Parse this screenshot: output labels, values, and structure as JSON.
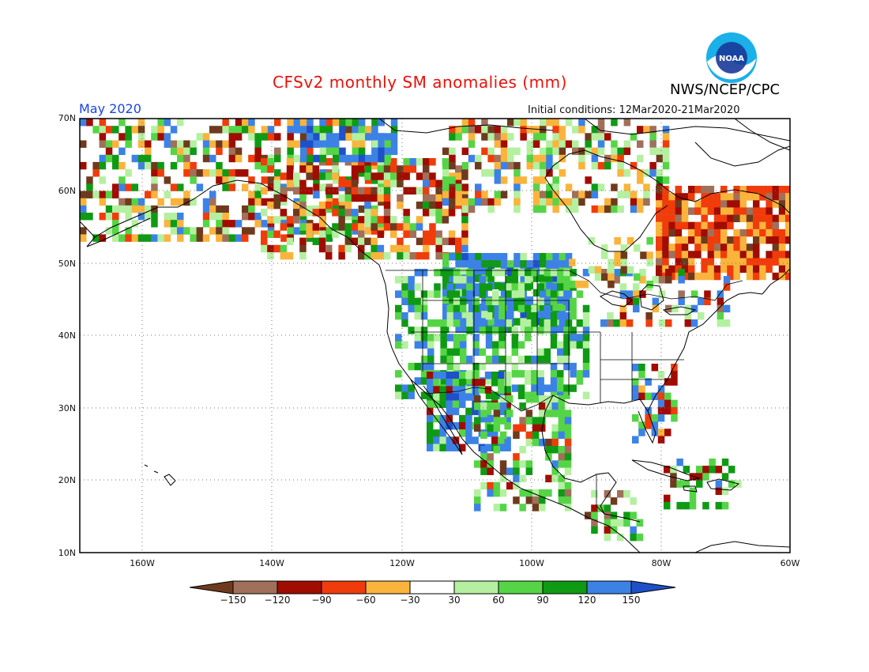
{
  "header": {
    "title": "CFSv2 monthly SM anomalies (mm)",
    "month": "May 2020",
    "init_conditions": "Initial conditions: 12Mar2020-21Mar2020",
    "agency": "NWS/NCEP/CPC",
    "logo_text": "NOAA"
  },
  "axes": {
    "lat_ticks": [
      "70N",
      "60N",
      "50N",
      "40N",
      "30N",
      "20N",
      "10N"
    ],
    "lon_ticks": [
      "160W",
      "140W",
      "120W",
      "100W",
      "80W",
      "60W"
    ]
  },
  "colorbar": {
    "labels": [
      "-150",
      "-120",
      "-90",
      "-60",
      "-30",
      "30",
      "60",
      "90",
      "120",
      "150"
    ],
    "colors": [
      "#6e3a1e",
      "#a0705a",
      "#a00c00",
      "#f03c0a",
      "#fab43c",
      "#ffffff",
      "#b4f0a0",
      "#55d546",
      "#0f9a14",
      "#3c82e6",
      "#1e50c8"
    ]
  },
  "map_data": {
    "projection": "lat-lon",
    "lon_range": [
      -171,
      -60
    ],
    "lat_range": [
      10,
      70
    ],
    "grid_lines": "dotted every 10 degrees latitude and 20 degrees longitude",
    "regions": [
      {
        "name": "Northern Plains / Rockies",
        "anomaly": "wet (+90 to +150)"
      },
      {
        "name": "Southwest US / NW Mexico",
        "anomaly": "wet (+60 to +150)"
      },
      {
        "name": "Quebec / Labrador",
        "anomaly": "dry (-30 to -120)"
      },
      {
        "name": "British Columbia / Yukon",
        "anomaly": "dry (-30 to -150)"
      },
      {
        "name": "Alaska",
        "anomaly": "mixed"
      },
      {
        "name": "Central Mexico",
        "anomaly": "mixed wet"
      }
    ]
  },
  "colors": {
    "title": "#e8120c",
    "month": "#1a44e6"
  }
}
